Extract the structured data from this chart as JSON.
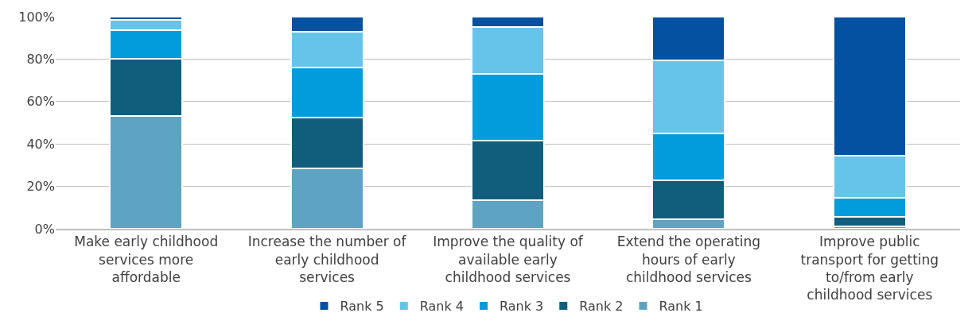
{
  "chart_data": {
    "type": "bar",
    "stacked": true,
    "categories": [
      "Make early childhood services more affordable",
      "Increase the number of early childhood services",
      "Improve the quality of available early childhood services",
      "Extend the operating hours of early childhood services",
      "Improve public transport for getting to/from early childhood services"
    ],
    "series": [
      {
        "name": "Rank 1",
        "color": "#5ea3c1",
        "values": [
          53,
          28.5,
          13.5,
          4.5,
          1
        ]
      },
      {
        "name": "Rank 2",
        "color": "#115e7c",
        "values": [
          27,
          24,
          28,
          18.5,
          4.5
        ]
      },
      {
        "name": "Rank 3",
        "color": "#009dda",
        "values": [
          13.5,
          23.5,
          31.5,
          22,
          9
        ]
      },
      {
        "name": "Rank 4",
        "color": "#66c4ea",
        "values": [
          5,
          17,
          22,
          34.5,
          20
        ]
      },
      {
        "name": "Rank 5",
        "color": "#0351a0",
        "values": [
          1.5,
          7,
          5,
          20.5,
          65.5
        ]
      }
    ],
    "ylim": [
      0,
      100
    ],
    "yticks": [
      {
        "value": 0,
        "label": "0%"
      },
      {
        "value": 20,
        "label": "20%"
      },
      {
        "value": 40,
        "label": "40%"
      },
      {
        "value": 60,
        "label": "60%"
      },
      {
        "value": 80,
        "label": "80%"
      },
      {
        "value": 100,
        "label": "100%"
      }
    ],
    "grid": "y",
    "legend": "bottom"
  }
}
